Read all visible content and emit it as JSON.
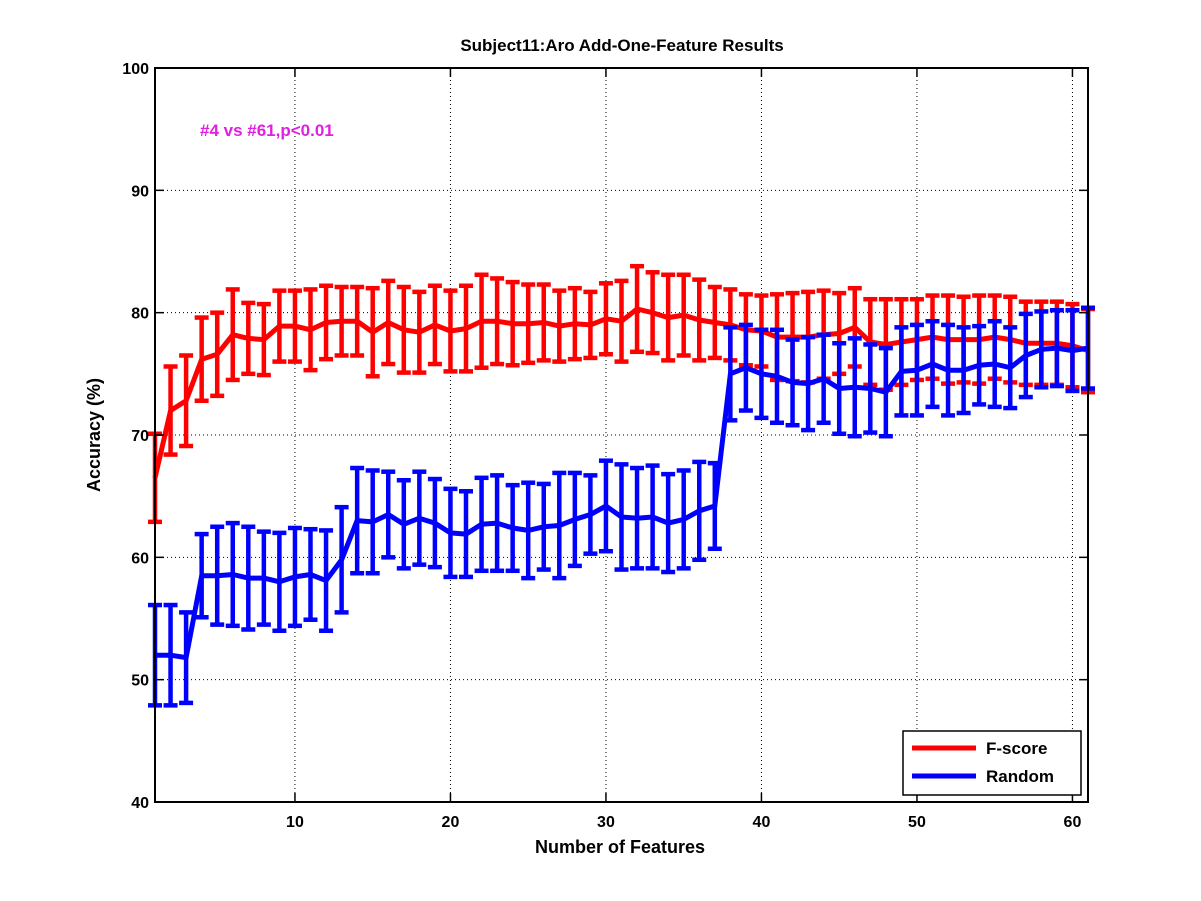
{
  "chart_data": {
    "type": "line",
    "title": "Subject11:Aro Add-One-Feature Results",
    "xlabel": "Number of Features",
    "ylabel": "Accuracy (%)",
    "xlim": [
      1,
      61
    ],
    "ylim": [
      40,
      100
    ],
    "xticks": [
      10,
      20,
      30,
      40,
      50,
      60
    ],
    "yticks": [
      40,
      50,
      60,
      70,
      80,
      90,
      100
    ],
    "grid": true,
    "legend_position": "bottom-right",
    "annotation": "#4 vs #61,p<0.01",
    "x": [
      1,
      2,
      3,
      4,
      5,
      6,
      7,
      8,
      9,
      10,
      11,
      12,
      13,
      14,
      15,
      16,
      17,
      18,
      19,
      20,
      21,
      22,
      23,
      24,
      25,
      26,
      27,
      28,
      29,
      30,
      31,
      32,
      33,
      34,
      35,
      36,
      37,
      38,
      39,
      40,
      41,
      42,
      43,
      44,
      45,
      46,
      47,
      48,
      49,
      50,
      51,
      52,
      53,
      54,
      55,
      56,
      57,
      58,
      59,
      60,
      61
    ],
    "series": [
      {
        "name": "F-score",
        "color": "#ff0000",
        "values": [
          66.5,
          72.0,
          72.8,
          76.2,
          76.6,
          78.2,
          77.9,
          77.8,
          78.9,
          78.9,
          78.6,
          79.2,
          79.3,
          79.3,
          78.4,
          79.2,
          78.6,
          78.4,
          79.0,
          78.5,
          78.7,
          79.3,
          79.3,
          79.1,
          79.1,
          79.2,
          78.9,
          79.1,
          79.0,
          79.5,
          79.3,
          80.3,
          80.0,
          79.6,
          79.8,
          79.4,
          79.2,
          79.0,
          78.6,
          78.5,
          78.0,
          78.0,
          78.0,
          78.2,
          78.3,
          78.8,
          77.6,
          77.4,
          77.6,
          77.8,
          78.0,
          77.8,
          77.8,
          77.8,
          78.0,
          77.8,
          77.5,
          77.5,
          77.5,
          77.3,
          76.9
        ],
        "errors": [
          3.6,
          3.6,
          3.7,
          3.4,
          3.4,
          3.7,
          2.9,
          2.9,
          2.9,
          2.9,
          3.3,
          3.0,
          2.8,
          2.8,
          3.6,
          3.4,
          3.5,
          3.3,
          3.2,
          3.3,
          3.5,
          3.8,
          3.5,
          3.4,
          3.2,
          3.1,
          2.9,
          2.9,
          2.7,
          2.9,
          3.3,
          3.5,
          3.3,
          3.5,
          3.3,
          3.3,
          2.9,
          2.9,
          2.9,
          2.9,
          3.5,
          3.6,
          3.7,
          3.6,
          3.3,
          3.2,
          3.5,
          3.7,
          3.5,
          3.3,
          3.4,
          3.6,
          3.5,
          3.6,
          3.4,
          3.5,
          3.4,
          3.4,
          3.4,
          3.4,
          3.4
        ]
      },
      {
        "name": "Random",
        "color": "#0000ff",
        "values": [
          52.0,
          52.0,
          51.8,
          58.5,
          58.5,
          58.6,
          58.3,
          58.3,
          58.0,
          58.4,
          58.6,
          58.1,
          59.8,
          63.0,
          62.9,
          63.5,
          62.7,
          63.2,
          62.8,
          62.0,
          61.9,
          62.7,
          62.8,
          62.4,
          62.2,
          62.5,
          62.6,
          63.1,
          63.5,
          64.2,
          63.3,
          63.2,
          63.3,
          62.8,
          63.1,
          63.8,
          64.2,
          75.0,
          75.5,
          75.0,
          74.8,
          74.3,
          74.2,
          74.6,
          73.8,
          73.9,
          73.8,
          73.5,
          75.2,
          75.3,
          75.8,
          75.3,
          75.3,
          75.7,
          75.8,
          75.5,
          76.5,
          77.0,
          77.1,
          76.9,
          77.1
        ],
        "errors": [
          4.1,
          4.1,
          3.7,
          3.4,
          4.0,
          4.2,
          4.2,
          3.8,
          4.0,
          4.0,
          3.7,
          4.1,
          4.3,
          4.3,
          4.2,
          3.5,
          3.6,
          3.8,
          3.6,
          3.6,
          3.5,
          3.8,
          3.9,
          3.5,
          3.9,
          3.5,
          4.3,
          3.8,
          3.2,
          3.7,
          4.3,
          4.1,
          4.2,
          4.0,
          4.0,
          4.0,
          3.5,
          3.8,
          3.5,
          3.6,
          3.8,
          3.5,
          3.8,
          3.6,
          3.7,
          4.0,
          3.6,
          3.6,
          3.6,
          3.7,
          3.5,
          3.7,
          3.5,
          3.2,
          3.5,
          3.3,
          3.4,
          3.1,
          3.1,
          3.3,
          3.3
        ]
      }
    ]
  }
}
